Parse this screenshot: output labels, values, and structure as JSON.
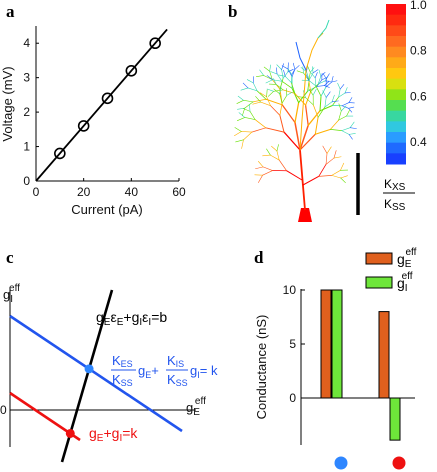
{
  "panels": {
    "a": "a",
    "b": "b",
    "c": "c",
    "d": "d"
  },
  "chart_data": [
    {
      "panel": "a",
      "type": "scatter",
      "xlabel": "Current (pA)",
      "ylabel": "Voltage (mV)",
      "xlim": [
        0,
        60
      ],
      "ylim": [
        0,
        4.5
      ],
      "xticks": [
        "0",
        "20",
        "40",
        "60"
      ],
      "yticks": [
        "0",
        "1",
        "2",
        "3",
        "4"
      ],
      "points": [
        {
          "x": 10,
          "y": 0.8
        },
        {
          "x": 20,
          "y": 1.6
        },
        {
          "x": 30,
          "y": 2.4
        },
        {
          "x": 40,
          "y": 3.2
        },
        {
          "x": 50,
          "y": 4.0
        }
      ],
      "fit_line": {
        "x": [
          0,
          55
        ],
        "y": [
          0,
          4.4
        ]
      },
      "marker": "open-circle",
      "line_color": "#000000"
    },
    {
      "panel": "b",
      "type": "heatmap",
      "colorbar_ticks": [
        "1.0",
        "0.8",
        "0.6",
        "0.4"
      ],
      "colorbar_range": [
        0.3,
        1.0
      ],
      "colorbar_label_num": "K",
      "colorbar_label_num_sub": "XS",
      "colorbar_label_den": "K",
      "colorbar_label_den_sub": "SS",
      "colors": [
        "#ff0000",
        "#ff5a1e",
        "#ffb000",
        "#66e000",
        "#33d9b0",
        "#1a60ff"
      ]
    },
    {
      "panel": "c",
      "type": "line",
      "ylabel_base": "g",
      "ylabel_sub": "I",
      "ylabel_sup": "eff",
      "xlabel_base": "g",
      "xlabel_sub": "E",
      "xlabel_sup": "eff",
      "zero_label": "0",
      "lines": [
        {
          "color": "#000000",
          "label": "gEεE+gIεI=b"
        },
        {
          "color": "#2255ee",
          "label": "KES/KSS gE + KIS/KSS gI = k"
        },
        {
          "color": "#ee1111",
          "label": "gE+gI=k"
        }
      ],
      "label_black": {
        "g1": "g",
        "s1": "E",
        "e1": "ε",
        "es1": "E",
        "plus": "+",
        "g2": "g",
        "s2": "I",
        "e2": "ε",
        "es2": "I",
        "rhs": "=b"
      },
      "label_blue": {
        "k1": "K",
        "k1s": "ES",
        "d1": "K",
        "d1s": "SS",
        "g1": "g",
        "s1": "E",
        "plus": "+",
        "k2": "K",
        "k2s": "IS",
        "d2": "K",
        "d2s": "SS",
        "g2": "g",
        "s2": "I",
        "rhs": "= k"
      },
      "label_red": {
        "g1": "g",
        "s1": "E",
        "plus": "+",
        "g2": "g",
        "s2": "I",
        "rhs": "=k"
      },
      "intersections": [
        {
          "color": "#2e86ff",
          "on": [
            "black",
            "blue"
          ]
        },
        {
          "color": "#ee1111",
          "on": [
            "black",
            "red"
          ]
        }
      ]
    },
    {
      "panel": "d",
      "type": "bar",
      "ylabel": "Conductance (nS)",
      "ylim": [
        -4,
        10.5
      ],
      "yticks": [
        "10",
        "5",
        "0"
      ],
      "categories": [
        "blue",
        "red"
      ],
      "category_marker_colors": [
        "#2e86ff",
        "#ee1111"
      ],
      "series": [
        {
          "name": "g_E^eff",
          "color": "#e0601e",
          "values": [
            10,
            8
          ]
        },
        {
          "name": "g_I^eff",
          "color": "#6ee63a",
          "values": [
            10,
            -3.9
          ]
        }
      ],
      "legend": {
        "position": "top-right",
        "entries": [
          {
            "base": "g",
            "sub": "E",
            "sup": "eff"
          },
          {
            "base": "g",
            "sub": "I",
            "sup": "eff"
          }
        ]
      }
    }
  ]
}
